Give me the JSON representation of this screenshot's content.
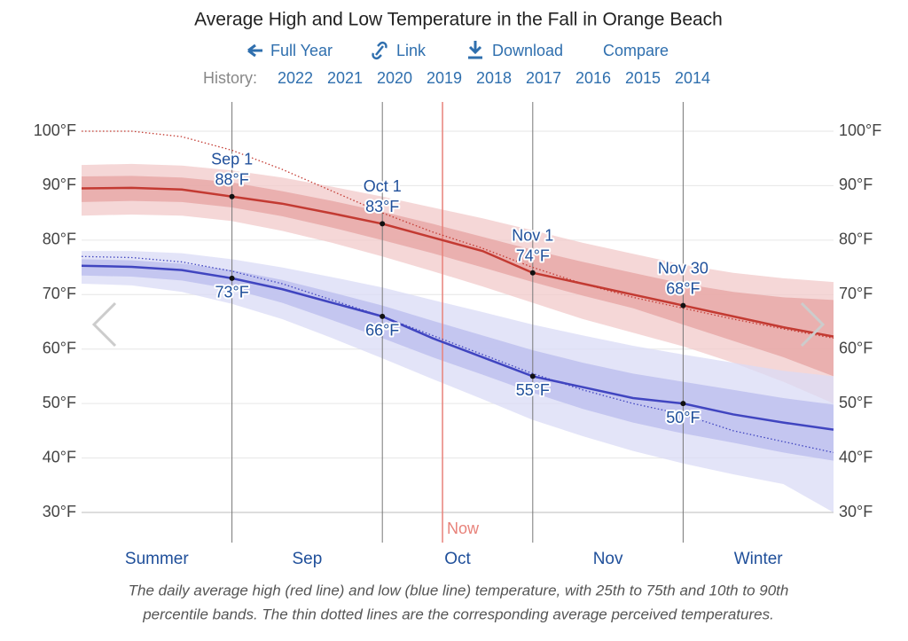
{
  "chart_data": {
    "type": "line",
    "title": "Average High and Low Temperature in the Fall in Orange Beach",
    "links": [
      "Full Year",
      "Link",
      "Download",
      "Compare"
    ],
    "history_label": "History:",
    "history": [
      "2022",
      "2021",
      "2020",
      "2019",
      "2018",
      "2017",
      "2016",
      "2015",
      "2014"
    ],
    "periods": [
      "Summer",
      "Sep",
      "Oct",
      "Nov",
      "Winter"
    ],
    "markers": [
      {
        "label": "Sep 1",
        "index": 3
      },
      {
        "label": "Oct 1",
        "index": 6
      },
      {
        "label": "Nov 1",
        "index": 9
      },
      {
        "label": "Nov 30",
        "index": 12
      }
    ],
    "now": {
      "label": "Now",
      "index": 7.2
    },
    "ylim": [
      30,
      100
    ],
    "yticks": [
      {
        "value": 30,
        "label": "30°F"
      },
      {
        "value": 40,
        "label": "40°F"
      },
      {
        "value": 50,
        "label": "50°F"
      },
      {
        "value": 60,
        "label": "60°F"
      },
      {
        "value": 70,
        "label": "70°F"
      },
      {
        "value": 80,
        "label": "80°F"
      },
      {
        "value": 90,
        "label": "90°F"
      },
      {
        "value": 100,
        "label": "100°F"
      }
    ],
    "grid": true,
    "bands": [
      {
        "color": "#f2caca",
        "upper": [
          93.8,
          94,
          93.7,
          92.8,
          91.5,
          89.8,
          88,
          86,
          84,
          81.8,
          79.5,
          77.5,
          75.5,
          74,
          73,
          72.3
        ],
        "lower": [
          84.5,
          84.7,
          84.5,
          83.5,
          81.7,
          79.5,
          77,
          74.3,
          71.5,
          68.5,
          65.5,
          63,
          60.5,
          57.5,
          54,
          50
        ]
      },
      {
        "color": "#e6a3a2",
        "upper": [
          91.7,
          91.8,
          91.5,
          90.6,
          89,
          87.2,
          85.2,
          83,
          80.6,
          78.2,
          76,
          74,
          72,
          70.5,
          69.5,
          69
        ],
        "lower": [
          87,
          87.2,
          87,
          86,
          84.4,
          82.3,
          80,
          77.6,
          75,
          72.3,
          69.8,
          67.5,
          64.5,
          61.5,
          58.5,
          55
        ]
      },
      {
        "color": "#d9dbf5",
        "upper": [
          78,
          78,
          77.6,
          76.5,
          75,
          73.2,
          71.3,
          69,
          66.8,
          64.5,
          62.5,
          60.6,
          59,
          57.5,
          56,
          55
        ],
        "lower": [
          72,
          71.7,
          70.5,
          68.3,
          65.5,
          62,
          58.3,
          54.5,
          50.8,
          47,
          44,
          41.3,
          39,
          37,
          35.2,
          30
        ]
      },
      {
        "color": "#b9bcee",
        "upper": [
          76.5,
          76.3,
          75.7,
          74.5,
          72.7,
          70.4,
          68,
          65.2,
          62.5,
          59.8,
          57.5,
          55.5,
          54,
          52.5,
          51,
          49.8
        ],
        "lower": [
          73.5,
          73.3,
          72.6,
          71,
          68.5,
          65.3,
          62,
          58.5,
          55.3,
          52,
          49,
          46.5,
          44.5,
          42.8,
          41,
          39.5
        ]
      }
    ],
    "series": [
      {
        "color": "#c33a32",
        "values": [
          89.5,
          89.6,
          89.3,
          88,
          86.7,
          84.9,
          83,
          80.5,
          78,
          74,
          72,
          70,
          68,
          66,
          64,
          62.3
        ],
        "value_labels": [
          null,
          null,
          null,
          "88°F",
          null,
          null,
          "83°F",
          null,
          null,
          "74°F",
          null,
          null,
          "68°F",
          null,
          null,
          null
        ]
      },
      {
        "color": "#4045c0",
        "values": [
          75.3,
          75.1,
          74.5,
          73,
          71,
          68.5,
          66,
          62,
          58.5,
          55,
          53,
          51,
          50,
          48,
          46.5,
          45.2
        ],
        "value_labels": [
          null,
          null,
          null,
          "73°F",
          null,
          null,
          "66°F",
          null,
          null,
          "55°F",
          null,
          null,
          "50°F",
          null,
          null,
          null
        ]
      },
      {
        "color": "#c33a32",
        "dotted": true,
        "values": [
          100,
          100,
          99,
          96.5,
          93,
          89,
          85,
          81.5,
          78.5,
          75,
          72,
          69.5,
          67.5,
          65.5,
          63.7,
          62
        ]
      },
      {
        "color": "#4045c0",
        "dotted": true,
        "values": [
          77,
          76.8,
          76,
          74.3,
          72,
          69,
          66,
          62.5,
          59,
          55.5,
          52.5,
          50,
          48,
          45,
          43,
          41
        ]
      }
    ],
    "caption": [
      "The daily average high (red line) and low (blue line) temperature, with 25th to 75th and 10th to 90th",
      "percentile bands. The thin dotted lines are the corresponding average perceived temperatures."
    ]
  }
}
